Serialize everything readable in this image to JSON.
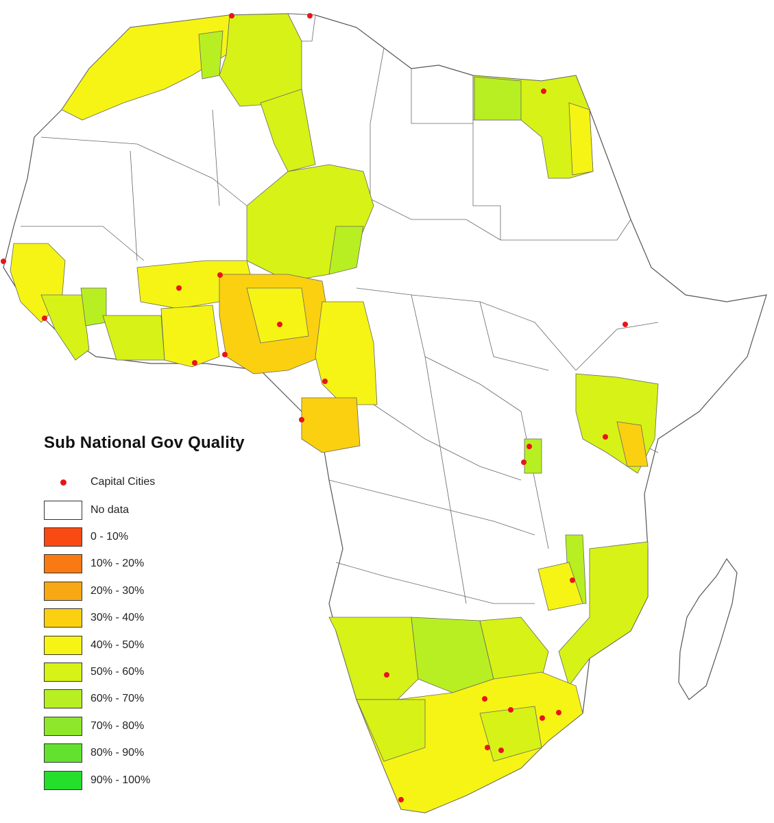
{
  "map": {
    "title": "Sub National Gov Quality",
    "capital_color": "#e8141b",
    "border_color": "#555555",
    "legend": {
      "capital_label": "Capital Cities",
      "classes": [
        {
          "label": "No data",
          "color": "#ffffff"
        },
        {
          "label": "0 - 10%",
          "color": "#fa4a14"
        },
        {
          "label": "10% - 20%",
          "color": "#f97a12"
        },
        {
          "label": "20% - 30%",
          "color": "#f9a815"
        },
        {
          "label": "30% - 40%",
          "color": "#fbd010"
        },
        {
          "label": "40% - 50%",
          "color": "#f6f414"
        },
        {
          "label": "50% - 60%",
          "color": "#d7f216"
        },
        {
          "label": "60% - 70%",
          "color": "#b8ef22"
        },
        {
          "label": "70% - 80%",
          "color": "#8ee72b"
        },
        {
          "label": "80% - 90%",
          "color": "#62e22f"
        },
        {
          "label": "90% - 100%",
          "color": "#26de2c"
        }
      ]
    }
  }
}
